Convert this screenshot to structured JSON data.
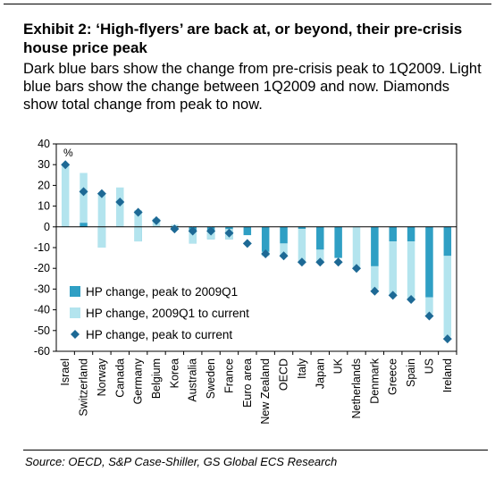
{
  "header": {
    "title": "Exhibit 2: ‘High-flyers’ are back at, or beyond, their pre-crisis house price peak",
    "subtitle": "Dark blue bars show the change from pre-crisis peak to 1Q2009. Light blue bars show the change between 1Q2009 and now. Diamonds show total change from peak to now."
  },
  "footer": {
    "source": "Source: OECD, S&P Case-Shiller, GS Global ECS Research"
  },
  "chart_data": {
    "type": "bar",
    "unit_label": "%",
    "ylim": [
      -60,
      40
    ],
    "ytick_step": 10,
    "categories": [
      "Israel",
      "Switzerland",
      "Norway",
      "Canada",
      "Germany",
      "Belgium",
      "Korea",
      "Australia",
      "Sweden",
      "France",
      "Euro area",
      "New Zealand",
      "OECD",
      "Italy",
      "Japan",
      "UK",
      "Netherlands",
      "Denmark",
      "Greece",
      "Spain",
      "US",
      "Ireland"
    ],
    "series": [
      {
        "name": "HP change, peak to 2009Q1",
        "kind": "bar",
        "color": "#2f9fc4",
        "values": [
          0,
          2,
          -10,
          0,
          -7,
          0,
          -1,
          -8,
          -6,
          -6,
          -4,
          -14,
          -8,
          -1,
          -11,
          -15,
          0,
          -19,
          -7,
          -7,
          -34,
          -14
        ]
      },
      {
        "name": "HP change, 2009Q1 to current",
        "kind": "bar",
        "color": "#b3e4ee",
        "values": [
          30,
          24,
          26,
          19,
          15,
          4,
          2,
          6,
          4,
          5,
          0,
          2,
          -6,
          -16,
          -6,
          0,
          -20,
          -11,
          -26,
          -28,
          -8,
          -39
        ]
      },
      {
        "name": "HP change, peak to current",
        "kind": "marker",
        "color": "#1d6995",
        "values": [
          30,
          17,
          16,
          12,
          7,
          3,
          -1,
          -2,
          -2,
          -3,
          -8,
          -13,
          -14,
          -17,
          -17,
          -17,
          -20,
          -31,
          -33,
          -35,
          -43,
          -54
        ]
      }
    ],
    "legend_position": "bottom-left"
  }
}
